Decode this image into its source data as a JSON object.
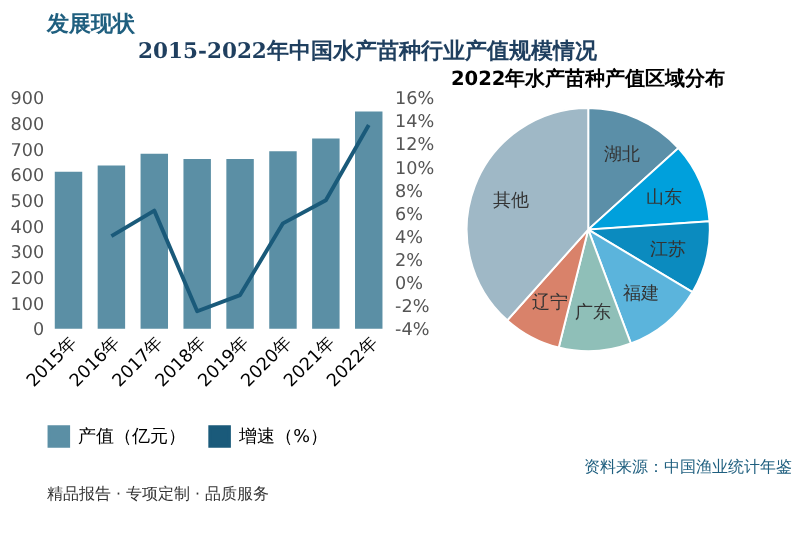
{
  "chart_data": [
    {
      "type": "bar",
      "title": "2015-2022年中国水产苗种行业产值规模情况",
      "annotations": [
        "发展现状",
        "资料来源：中国渔业统计年鉴",
        "精品报告 · 专项定制 · 品质服务"
      ],
      "categories": [
        "2015年",
        "2016年",
        "2017年",
        "2018年",
        "2019年",
        "2020年",
        "2021年",
        "2022年"
      ],
      "series": [
        {
          "name": "产值（亿元）",
          "color": "#5b8fa5",
          "values": [
            610,
            635,
            680,
            660,
            660,
            690,
            740,
            845
          ]
        },
        {
          "name": "增速（%）",
          "type": "line",
          "axis": "y2",
          "color": "#1a5a7a",
          "values": [
            null,
            4.0,
            6.2,
            -2.5,
            -1.1,
            5.1,
            7.1,
            13.6
          ]
        }
      ],
      "ylim": [
        0,
        900
      ],
      "yticks": [
        0,
        100,
        200,
        300,
        400,
        500,
        600,
        700,
        800,
        900
      ],
      "y2lim": [
        -4,
        16
      ],
      "y2ticks": [
        {
          "value": -4,
          "label": "-4%"
        },
        {
          "value": -2,
          "label": "-2%"
        },
        {
          "value": 0,
          "label": "0%"
        },
        {
          "value": 2,
          "label": "2%"
        },
        {
          "value": 4,
          "label": "4%"
        },
        {
          "value": 6,
          "label": "6%"
        },
        {
          "value": 8,
          "label": "8%"
        },
        {
          "value": 10,
          "label": "10%"
        },
        {
          "value": 12,
          "label": "12%"
        },
        {
          "value": 14,
          "label": "14%"
        },
        {
          "value": 16,
          "label": "16%"
        }
      ],
      "legend": "bottom",
      "grid": false,
      "marker": "none"
    },
    {
      "type": "pie",
      "title": "2022年水产苗种产值区域分布",
      "categories": [
        "湖北",
        "山东",
        "江苏",
        "福建",
        "广东",
        "辽宁",
        "其他"
      ],
      "values": [
        13.3,
        10.6,
        9.7,
        10.7,
        9.6,
        7.7,
        38.4
      ],
      "colors": [
        "#5b8fa8",
        "#00a0dc",
        "#0b8bbf",
        "#5bb4dc",
        "#8fbfb8",
        "#d9826a",
        "#9fb8c6"
      ]
    }
  ]
}
